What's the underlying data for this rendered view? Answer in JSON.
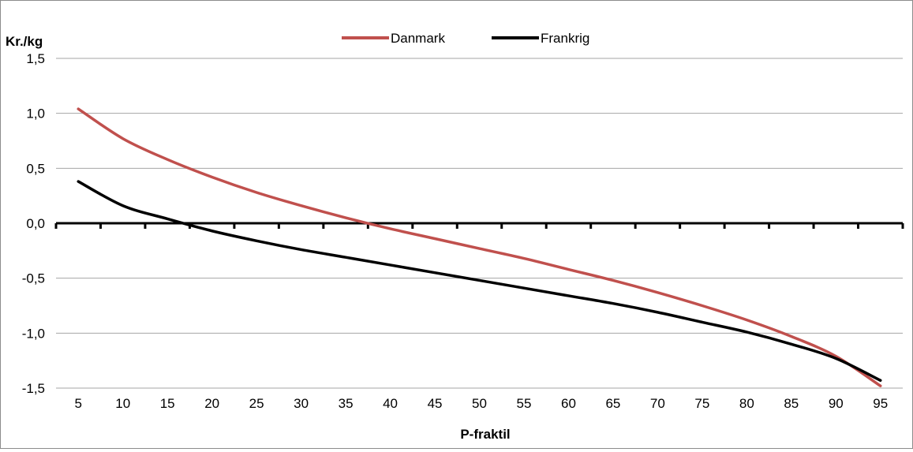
{
  "chart_data": {
    "type": "line",
    "title": "",
    "ylabel": "Kr./kg",
    "xlabel": "P-fraktil",
    "x": [
      5,
      10,
      15,
      20,
      25,
      30,
      35,
      40,
      45,
      50,
      55,
      60,
      65,
      70,
      75,
      80,
      85,
      90,
      95
    ],
    "x_tick_labels": [
      "5",
      "10",
      "15",
      "20",
      "25",
      "30",
      "35",
      "40",
      "45",
      "50",
      "55",
      "60",
      "65",
      "70",
      "75",
      "80",
      "85",
      "90",
      "95"
    ],
    "y_ticks": [
      1.5,
      1.0,
      0.5,
      0.0,
      -0.5,
      -1.0,
      -1.5
    ],
    "y_tick_labels": [
      "1,5",
      "1,0",
      "0,5",
      "0,0",
      "-0,5",
      "-1,0",
      "-1,5"
    ],
    "ylim": [
      -1.5,
      1.5
    ],
    "grid": true,
    "legend_position": "top-center",
    "series": [
      {
        "name": "Danmark",
        "color": "#c0504d",
        "values": [
          1.04,
          0.77,
          0.58,
          0.42,
          0.28,
          0.16,
          0.05,
          -0.05,
          -0.14,
          -0.23,
          -0.32,
          -0.42,
          -0.52,
          -0.63,
          -0.75,
          -0.88,
          -1.03,
          -1.21,
          -1.48
        ]
      },
      {
        "name": "Frankrig",
        "color": "#000000",
        "values": [
          0.38,
          0.16,
          0.04,
          -0.07,
          -0.16,
          -0.24,
          -0.31,
          -0.38,
          -0.45,
          -0.52,
          -0.59,
          -0.66,
          -0.73,
          -0.81,
          -0.9,
          -0.99,
          -1.1,
          -1.23,
          -1.43
        ]
      }
    ]
  }
}
